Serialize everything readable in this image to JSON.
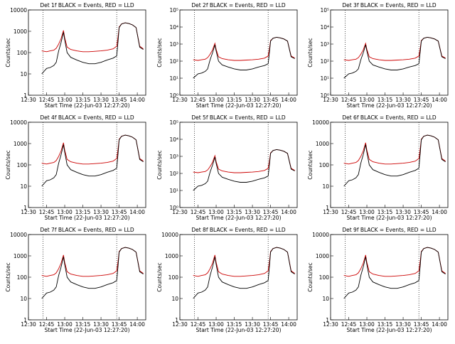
{
  "colors": {
    "events": "#000000",
    "lld": "#cc0000",
    "axis": "#000000",
    "background": "#ffffff"
  },
  "shared": {
    "xlabel": "Start Time (22-Jun-03 12:27:20)",
    "ylabel": "Counts/sec",
    "x_tick_labels": [
      "12:30",
      "12:45",
      "13:00",
      "13:15",
      "13:30",
      "13:45",
      "14:00"
    ],
    "x_range_minutes": [
      "12:30",
      "14:07"
    ],
    "dotted_marker_times": [
      "12:42",
      "13:43"
    ],
    "scale": "log"
  },
  "panels": [
    {
      "title": "Det 1f BLACK = Events, RED = LLD",
      "ylim": [
        1,
        10000
      ],
      "y_tick_labels": [
        "1",
        "10",
        "100",
        "1000",
        "10000"
      ]
    },
    {
      "title": "Det 2f BLACK = Events, RED = LLD",
      "ylim": [
        1,
        100000
      ],
      "y_tick_labels": [
        "10⁰",
        "10¹",
        "10²",
        "10³",
        "10⁴",
        "10⁵"
      ]
    },
    {
      "title": "Det 3f BLACK = Events, RED = LLD",
      "ylim": [
        1,
        100000
      ],
      "y_tick_labels": [
        "10⁰",
        "10¹",
        "10²",
        "10³",
        "10⁴",
        "10⁵"
      ]
    },
    {
      "title": "Det 4f BLACK = Events, RED = LLD",
      "ylim": [
        1,
        10000
      ],
      "y_tick_labels": [
        "1",
        "10",
        "100",
        "1000",
        "10000"
      ]
    },
    {
      "title": "Det 5f BLACK = Events, RED = LLD",
      "ylim": [
        1,
        100000
      ],
      "y_tick_labels": [
        "10⁰",
        "10¹",
        "10²",
        "10³",
        "10⁴",
        "10⁵"
      ]
    },
    {
      "title": "Det 6f BLACK = Events, RED = LLD",
      "ylim": [
        1,
        10000
      ],
      "y_tick_labels": [
        "1",
        "10",
        "100",
        "1000",
        "10000"
      ]
    },
    {
      "title": "Det 7f BLACK = Events, RED = LLD",
      "ylim": [
        1,
        10000
      ],
      "y_tick_labels": [
        "1",
        "10",
        "100",
        "1000",
        "10000"
      ]
    },
    {
      "title": "Det 8f BLACK = Events, RED = LLD",
      "ylim": [
        1,
        10000
      ],
      "y_tick_labels": [
        "1",
        "10",
        "100",
        "1000",
        "10000"
      ]
    },
    {
      "title": "Det 9f BLACK = Events, RED = LLD",
      "ylim": [
        1,
        10000
      ],
      "y_tick_labels": [
        "1",
        "10",
        "100",
        "1000",
        "10000"
      ]
    }
  ],
  "chart_data": {
    "type": "line",
    "title": "",
    "xlabel": "Start Time (22-Jun-03 12:27:20)",
    "ylabel": "Counts/sec",
    "x": [
      "12:41",
      "12:45",
      "12:48",
      "12:51",
      "12:53",
      "12:55",
      "12:57",
      "12:59",
      "13:00",
      "13:02",
      "13:05",
      "13:10",
      "13:15",
      "13:20",
      "13:25",
      "13:30",
      "13:35",
      "13:40",
      "13:43",
      "13:44",
      "13:45",
      "13:47",
      "13:50",
      "13:53",
      "13:56",
      "13:59",
      "14:02",
      "14:05"
    ],
    "series": [
      {
        "name": "Events",
        "values": [
          10,
          18,
          20,
          25,
          35,
          120,
          300,
          900,
          400,
          100,
          60,
          45,
          35,
          30,
          30,
          35,
          45,
          55,
          70,
          300,
          1500,
          2200,
          2500,
          2300,
          2000,
          1500,
          180,
          140
        ]
      },
      {
        "name": "LLD",
        "values": [
          120,
          110,
          120,
          130,
          160,
          250,
          450,
          1100,
          500,
          180,
          140,
          120,
          110,
          110,
          115,
          120,
          130,
          150,
          200,
          500,
          1600,
          2200,
          2500,
          2300,
          2000,
          1500,
          200,
          150
        ]
      }
    ]
  }
}
